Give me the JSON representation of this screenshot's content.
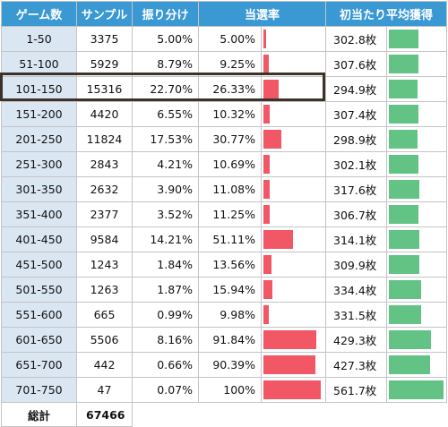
{
  "headers": {
    "games": "ゲーム数",
    "samples": "サンプル",
    "distribution": "振り分け",
    "win_rate": "当選率",
    "first_hit_avg": "初当たり平均獲得"
  },
  "rows": [
    {
      "range": "1-50",
      "samples": "3375",
      "dist": "5.00%",
      "rate": "5.00%",
      "rate_pct": 5.0,
      "medal": "302.8枚",
      "medal_value": 302.8
    },
    {
      "range": "51-100",
      "samples": "5929",
      "dist": "8.79%",
      "rate": "9.25%",
      "rate_pct": 9.25,
      "medal": "307.6枚",
      "medal_value": 307.6
    },
    {
      "range": "101-150",
      "samples": "15316",
      "dist": "22.70%",
      "rate": "26.33%",
      "rate_pct": 26.33,
      "medal": "294.9枚",
      "medal_value": 294.9
    },
    {
      "range": "151-200",
      "samples": "4420",
      "dist": "6.55%",
      "rate": "10.32%",
      "rate_pct": 10.32,
      "medal": "307.4枚",
      "medal_value": 307.4
    },
    {
      "range": "201-250",
      "samples": "11824",
      "dist": "17.53%",
      "rate": "30.77%",
      "rate_pct": 30.77,
      "medal": "298.9枚",
      "medal_value": 298.9
    },
    {
      "range": "251-300",
      "samples": "2843",
      "dist": "4.21%",
      "rate": "10.69%",
      "rate_pct": 10.69,
      "medal": "302.1枚",
      "medal_value": 302.1
    },
    {
      "range": "301-350",
      "samples": "2632",
      "dist": "3.90%",
      "rate": "11.08%",
      "rate_pct": 11.08,
      "medal": "317.6枚",
      "medal_value": 317.6
    },
    {
      "range": "351-400",
      "samples": "2377",
      "dist": "3.52%",
      "rate": "11.25%",
      "rate_pct": 11.25,
      "medal": "306.7枚",
      "medal_value": 306.7
    },
    {
      "range": "401-450",
      "samples": "9584",
      "dist": "14.21%",
      "rate": "51.11%",
      "rate_pct": 51.11,
      "medal": "314.1枚",
      "medal_value": 314.1
    },
    {
      "range": "451-500",
      "samples": "1243",
      "dist": "1.84%",
      "rate": "13.56%",
      "rate_pct": 13.56,
      "medal": "309.9枚",
      "medal_value": 309.9
    },
    {
      "range": "501-550",
      "samples": "1263",
      "dist": "1.87%",
      "rate": "15.94%",
      "rate_pct": 15.94,
      "medal": "334.4枚",
      "medal_value": 334.4
    },
    {
      "range": "551-600",
      "samples": "665",
      "dist": "0.99%",
      "rate": "9.98%",
      "rate_pct": 9.98,
      "medal": "331.5枚",
      "medal_value": 331.5
    },
    {
      "range": "601-650",
      "samples": "5506",
      "dist": "8.16%",
      "rate": "91.84%",
      "rate_pct": 91.84,
      "medal": "429.3枚",
      "medal_value": 429.3
    },
    {
      "range": "651-700",
      "samples": "442",
      "dist": "0.66%",
      "rate": "90.39%",
      "rate_pct": 90.39,
      "medal": "427.3枚",
      "medal_value": 427.3
    },
    {
      "range": "701-750",
      "samples": "47",
      "dist": "0.07%",
      "rate": "100%",
      "rate_pct": 100,
      "medal": "561.7枚",
      "medal_value": 561.7
    }
  ],
  "total": {
    "label": "総計",
    "samples": "67466"
  },
  "highlighted_row": "101-150",
  "colors": {
    "header": "#3a98d3",
    "range_bg": "#dbe6f3",
    "rate_bar": "#f25765",
    "medal_bar": "#63c384",
    "highlight_border": "#3b3328"
  }
}
